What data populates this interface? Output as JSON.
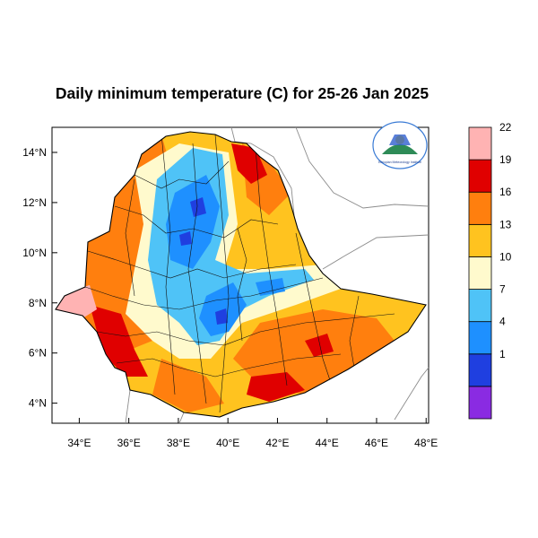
{
  "title": "Daily minimum temperature (C) for 25-26 Jan 2025",
  "axes": {
    "x_ticks": [
      "34°E",
      "36°E",
      "38°E",
      "40°E",
      "42°E",
      "44°E",
      "46°E",
      "48°E"
    ],
    "y_ticks": [
      "14°N",
      "12°N",
      "10°N",
      "8°N",
      "6°N",
      "4°N"
    ],
    "lon_range": [
      32.9,
      48.1
    ],
    "lat_range": [
      3.2,
      15.0
    ]
  },
  "legend": {
    "placement": "right",
    "bins": [
      {
        "color": "#8a2be2",
        "label": ""
      },
      {
        "color": "#1f3fe0",
        "label": "1"
      },
      {
        "color": "#1e90ff",
        "label": "4"
      },
      {
        "color": "#4fc3f7",
        "label": "7"
      },
      {
        "color": "#fffacd",
        "label": "10"
      },
      {
        "color": "#ffc31f",
        "label": "13"
      },
      {
        "color": "#ff7f0e",
        "label": "16"
      },
      {
        "color": "#e00000",
        "label": "19"
      },
      {
        "color": "#ffb3b3",
        "label": "22"
      }
    ]
  },
  "logo": {
    "text": "Ethiopian Meteorology Institute"
  }
}
